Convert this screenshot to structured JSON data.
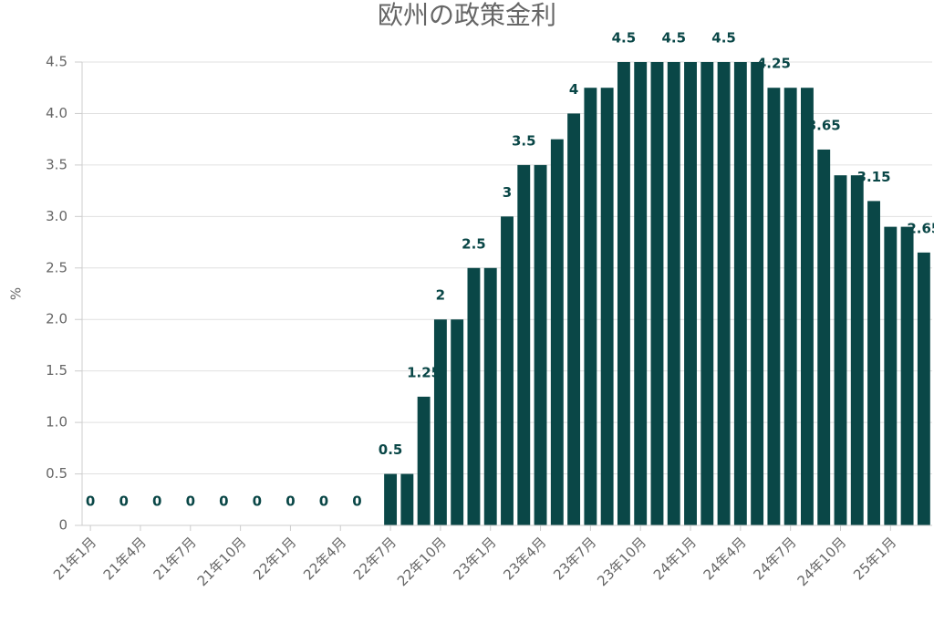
{
  "chart_data": {
    "type": "bar",
    "title": "欧州の政策金利",
    "y_label": "%",
    "categories": [
      "21年1月",
      null,
      null,
      "21年4月",
      null,
      null,
      "21年7月",
      null,
      null,
      "21年10月",
      null,
      null,
      "22年1月",
      null,
      null,
      "22年4月",
      null,
      null,
      "22年7月",
      null,
      null,
      "22年10月",
      null,
      null,
      "23年1月",
      null,
      null,
      "23年4月",
      null,
      null,
      "23年7月",
      null,
      null,
      "23年10月",
      null,
      null,
      "24年1月",
      null,
      null,
      "24年4月",
      null,
      null,
      "24年7月",
      null,
      null,
      "24年10月",
      null,
      null,
      "25年1月",
      null,
      null
    ],
    "values": [
      0,
      0,
      0,
      0,
      0,
      0,
      0,
      0,
      0,
      0,
      0,
      0,
      0,
      0,
      0,
      0,
      0,
      0,
      0.5,
      0.5,
      1.25,
      2,
      2,
      2.5,
      2.5,
      3,
      3.5,
      3.5,
      3.75,
      4,
      4.25,
      4.25,
      4.5,
      4.5,
      4.5,
      4.5,
      4.5,
      4.5,
      4.5,
      4.5,
      4.5,
      4.25,
      4.25,
      4.25,
      3.65,
      3.4,
      3.4,
      3.15,
      2.9,
      2.9,
      2.65
    ],
    "value_labels": [
      "0",
      null,
      "0",
      null,
      "0",
      null,
      "0",
      null,
      "0",
      null,
      "0",
      null,
      "0",
      null,
      "0",
      null,
      "0",
      null,
      "0.5",
      null,
      "1.25",
      "2",
      null,
      "2.5",
      null,
      "3",
      "3.5",
      null,
      null,
      "4",
      null,
      null,
      "4.5",
      null,
      null,
      "4.5",
      null,
      null,
      "4.5",
      null,
      null,
      "4.25",
      null,
      null,
      "3.65",
      null,
      null,
      "3.15",
      null,
      null,
      "2.65"
    ],
    "color": "#0a4747",
    "ylim": [
      0,
      4.5
    ],
    "yticks": [
      0,
      0.5,
      {
        "value": 1,
        "label": "1.0"
      },
      1.5,
      {
        "value": 2,
        "label": "2.0"
      },
      2.5,
      {
        "value": 3,
        "label": "3.0"
      },
      3.5,
      {
        "value": 4,
        "label": "4.0"
      },
      4.5
    ],
    "grid": true
  }
}
